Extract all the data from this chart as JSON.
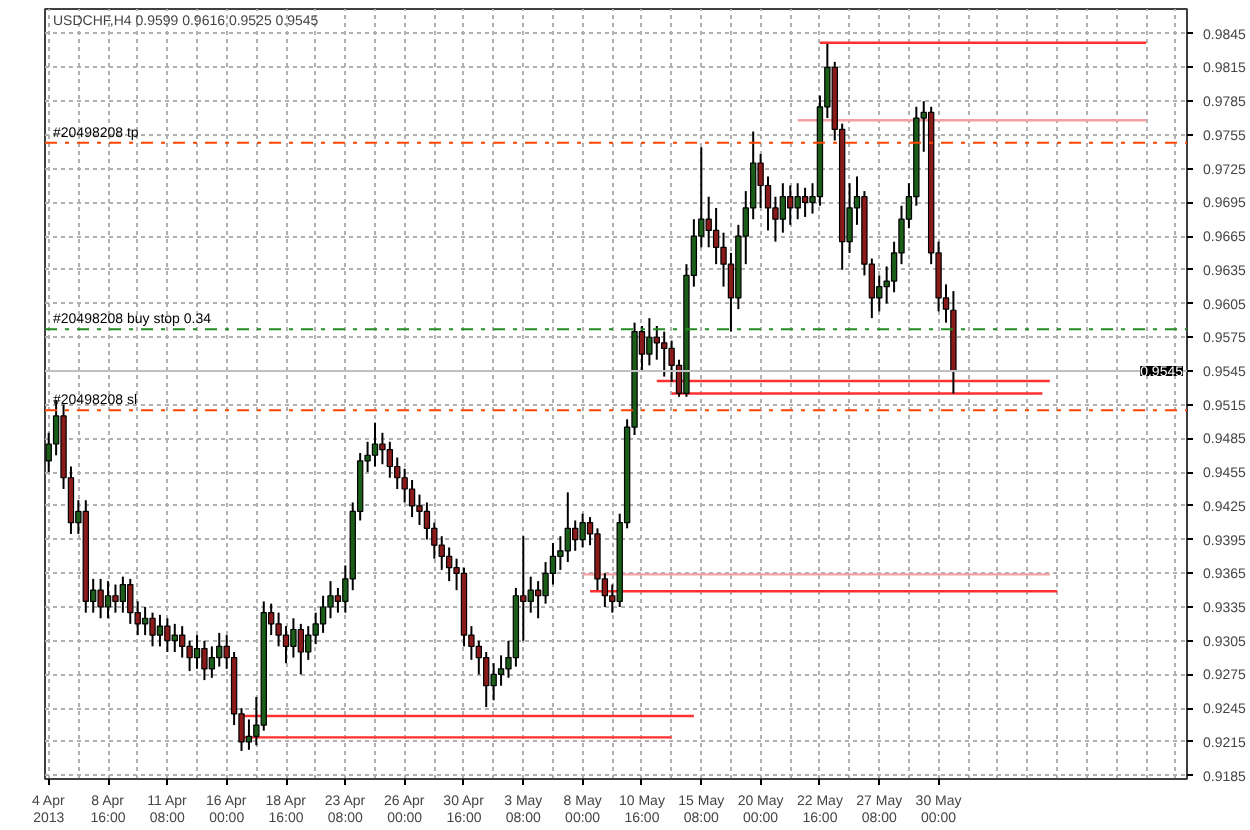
{
  "chart_data": {
    "type": "candlestick",
    "title": "USDCHF,H4 0.9599 0.9616 0.9525 0.9545",
    "categories": [
      "4 Apr 2013",
      null,
      null,
      null,
      null,
      null,
      null,
      null,
      "8 Apr 16:00",
      null,
      null,
      null,
      null,
      null,
      null,
      null,
      "11 Apr 08:00",
      null,
      null,
      null,
      null,
      null,
      null,
      null,
      "16 Apr 00:00",
      null,
      null,
      null,
      null,
      null,
      null,
      null,
      "18 Apr 16:00",
      null,
      null,
      null,
      null,
      null,
      null,
      null,
      "23 Apr 08:00",
      null,
      null,
      null,
      null,
      null,
      null,
      null,
      "26 Apr 00:00",
      null,
      null,
      null,
      null,
      null,
      null,
      null,
      "30 Apr 16:00",
      null,
      null,
      null,
      null,
      null,
      null,
      null,
      "3 May 08:00",
      null,
      null,
      null,
      null,
      null,
      null,
      null,
      "8 May 00:00",
      null,
      null,
      null,
      null,
      null,
      null,
      null,
      "10 May 16:00",
      null,
      null,
      null,
      null,
      null,
      null,
      null,
      "15 May 08:00",
      null,
      null,
      null,
      null,
      null,
      null,
      null,
      "20 May 00:00",
      null,
      null,
      null,
      null,
      null,
      null,
      null,
      "22 May 16:00",
      null,
      null,
      null,
      null,
      null,
      null,
      null,
      "27 May 08:00",
      null,
      null,
      null,
      null,
      null,
      null,
      null,
      "30 May 00:00",
      null,
      null,
      null,
      null,
      null,
      null,
      null,
      null,
      null,
      null,
      null,
      null,
      null,
      null,
      null,
      null,
      null,
      null,
      null,
      null,
      null,
      null,
      null,
      null,
      null,
      null,
      null,
      null,
      null,
      null,
      null,
      null,
      null
    ],
    "ohlc": [
      [
        0.9465,
        0.949,
        0.9455,
        0.948
      ],
      [
        0.948,
        0.9519,
        0.947,
        0.9505
      ],
      [
        0.9505,
        0.9515,
        0.944,
        0.945
      ],
      [
        0.945,
        0.946,
        0.94,
        0.941
      ],
      [
        0.941,
        0.943,
        0.94,
        0.942
      ],
      [
        0.942,
        0.943,
        0.933,
        0.934
      ],
      [
        0.934,
        0.936,
        0.933,
        0.935
      ],
      [
        0.935,
        0.936,
        0.9325,
        0.9335
      ],
      [
        0.9335,
        0.9358,
        0.9325,
        0.9345
      ],
      [
        0.9345,
        0.9355,
        0.933,
        0.934
      ],
      [
        0.934,
        0.9362,
        0.933,
        0.9355
      ],
      [
        0.9355,
        0.936,
        0.932,
        0.933
      ],
      [
        0.933,
        0.934,
        0.931,
        0.932
      ],
      [
        0.932,
        0.9335,
        0.931,
        0.9325
      ],
      [
        0.9325,
        0.933,
        0.93,
        0.931
      ],
      [
        0.931,
        0.9328,
        0.93,
        0.9318
      ],
      [
        0.9318,
        0.9325,
        0.9295,
        0.9305
      ],
      [
        0.9305,
        0.932,
        0.9295,
        0.931
      ],
      [
        0.931,
        0.9318,
        0.929,
        0.93
      ],
      [
        0.93,
        0.9305,
        0.9278,
        0.929
      ],
      [
        0.929,
        0.931,
        0.928,
        0.9298
      ],
      [
        0.9298,
        0.9305,
        0.927,
        0.928
      ],
      [
        0.928,
        0.93,
        0.9272,
        0.929
      ],
      [
        0.929,
        0.9312,
        0.9282,
        0.93
      ],
      [
        0.93,
        0.931,
        0.928,
        0.929
      ],
      [
        0.929,
        0.9295,
        0.923,
        0.924
      ],
      [
        0.924,
        0.9245,
        0.9207,
        0.9215
      ],
      [
        0.9215,
        0.9235,
        0.9208,
        0.922
      ],
      [
        0.922,
        0.9255,
        0.9212,
        0.923
      ],
      [
        0.923,
        0.934,
        0.9225,
        0.933
      ],
      [
        0.933,
        0.9338,
        0.931,
        0.932
      ],
      [
        0.932,
        0.933,
        0.93,
        0.931
      ],
      [
        0.931,
        0.9318,
        0.9285,
        0.93
      ],
      [
        0.93,
        0.9325,
        0.929,
        0.9315
      ],
      [
        0.9315,
        0.932,
        0.9275,
        0.9295
      ],
      [
        0.9295,
        0.9318,
        0.9288,
        0.931
      ],
      [
        0.931,
        0.933,
        0.9302,
        0.932
      ],
      [
        0.932,
        0.9345,
        0.9312,
        0.9335
      ],
      [
        0.9335,
        0.9358,
        0.9325,
        0.9345
      ],
      [
        0.9345,
        0.9352,
        0.933,
        0.934
      ],
      [
        0.934,
        0.9372,
        0.933,
        0.936
      ],
      [
        0.936,
        0.9428,
        0.935,
        0.942
      ],
      [
        0.942,
        0.9472,
        0.9412,
        0.9465
      ],
      [
        0.9465,
        0.9482,
        0.9455,
        0.947
      ],
      [
        0.947,
        0.9499,
        0.946,
        0.948
      ],
      [
        0.948,
        0.949,
        0.9462,
        0.9475
      ],
      [
        0.9475,
        0.9482,
        0.945,
        0.946
      ],
      [
        0.946,
        0.9468,
        0.944,
        0.945
      ],
      [
        0.945,
        0.9458,
        0.9428,
        0.944
      ],
      [
        0.944,
        0.9448,
        0.9415,
        0.9425
      ],
      [
        0.9425,
        0.9435,
        0.9408,
        0.942
      ],
      [
        0.942,
        0.9428,
        0.9395,
        0.9405
      ],
      [
        0.9405,
        0.941,
        0.9378,
        0.939
      ],
      [
        0.939,
        0.9398,
        0.9368,
        0.938
      ],
      [
        0.938,
        0.9388,
        0.9358,
        0.937
      ],
      [
        0.937,
        0.9378,
        0.935,
        0.9365
      ],
      [
        0.9365,
        0.937,
        0.93,
        0.931
      ],
      [
        0.931,
        0.9318,
        0.9288,
        0.93
      ],
      [
        0.93,
        0.9305,
        0.9275,
        0.929
      ],
      [
        0.929,
        0.9295,
        0.9246,
        0.9265
      ],
      [
        0.9265,
        0.9285,
        0.9252,
        0.9275
      ],
      [
        0.9275,
        0.9292,
        0.9265,
        0.928
      ],
      [
        0.928,
        0.9305,
        0.9272,
        0.929
      ],
      [
        0.929,
        0.9352,
        0.9282,
        0.9345
      ],
      [
        0.9345,
        0.9398,
        0.9305,
        0.934
      ],
      [
        0.934,
        0.9362,
        0.933,
        0.935
      ],
      [
        0.935,
        0.9358,
        0.9325,
        0.9345
      ],
      [
        0.9345,
        0.9375,
        0.9338,
        0.9365
      ],
      [
        0.9365,
        0.9392,
        0.9355,
        0.938
      ],
      [
        0.938,
        0.9398,
        0.9368,
        0.9385
      ],
      [
        0.9385,
        0.9437,
        0.9375,
        0.9405
      ],
      [
        0.9405,
        0.9412,
        0.9385,
        0.9395
      ],
      [
        0.9395,
        0.9418,
        0.9388,
        0.941
      ],
      [
        0.941,
        0.9415,
        0.939,
        0.94
      ],
      [
        0.94,
        0.9405,
        0.935,
        0.936
      ],
      [
        0.936,
        0.9365,
        0.9335,
        0.9345
      ],
      [
        0.9345,
        0.9355,
        0.933,
        0.934
      ],
      [
        0.934,
        0.9418,
        0.9335,
        0.941
      ],
      [
        0.941,
        0.9502,
        0.9405,
        0.9495
      ],
      [
        0.9495,
        0.9588,
        0.9488,
        0.958
      ],
      [
        0.958,
        0.9585,
        0.9545,
        0.956
      ],
      [
        0.956,
        0.9592,
        0.955,
        0.9575
      ],
      [
        0.9575,
        0.9585,
        0.9555,
        0.957
      ],
      [
        0.957,
        0.958,
        0.954,
        0.9565
      ],
      [
        0.9565,
        0.9572,
        0.9535,
        0.955
      ],
      [
        0.955,
        0.9555,
        0.9522,
        0.9525
      ],
      [
        0.9525,
        0.964,
        0.9522,
        0.963
      ],
      [
        0.963,
        0.968,
        0.962,
        0.9665
      ],
      [
        0.9665,
        0.9744,
        0.9655,
        0.968
      ],
      [
        0.968,
        0.97,
        0.9655,
        0.967
      ],
      [
        0.967,
        0.969,
        0.964,
        0.9655
      ],
      [
        0.9655,
        0.9668,
        0.962,
        0.964
      ],
      [
        0.964,
        0.965,
        0.958,
        0.961
      ],
      [
        0.961,
        0.9675,
        0.96,
        0.9665
      ],
      [
        0.9665,
        0.9705,
        0.964,
        0.969
      ],
      [
        0.969,
        0.9758,
        0.968,
        0.973
      ],
      [
        0.973,
        0.9738,
        0.969,
        0.971
      ],
      [
        0.971,
        0.9718,
        0.967,
        0.969
      ],
      [
        0.969,
        0.97,
        0.966,
        0.968
      ],
      [
        0.968,
        0.9712,
        0.9668,
        0.97
      ],
      [
        0.97,
        0.971,
        0.9675,
        0.969
      ],
      [
        0.969,
        0.9712,
        0.968,
        0.97
      ],
      [
        0.97,
        0.9708,
        0.9682,
        0.9695
      ],
      [
        0.9695,
        0.9712,
        0.9685,
        0.97
      ],
      [
        0.97,
        0.979,
        0.9692,
        0.978
      ],
      [
        0.978,
        0.9836,
        0.977,
        0.9815
      ],
      [
        0.9815,
        0.982,
        0.975,
        0.976
      ],
      [
        0.976,
        0.9765,
        0.9635,
        0.966
      ],
      [
        0.966,
        0.9712,
        0.965,
        0.969
      ],
      [
        0.969,
        0.9718,
        0.9675,
        0.97
      ],
      [
        0.97,
        0.9705,
        0.963,
        0.964
      ],
      [
        0.964,
        0.9645,
        0.9592,
        0.961
      ],
      [
        0.961,
        0.963,
        0.9598,
        0.962
      ],
      [
        0.962,
        0.9638,
        0.9605,
        0.9625
      ],
      [
        0.9625,
        0.966,
        0.9615,
        0.965
      ],
      [
        0.965,
        0.9692,
        0.964,
        0.968
      ],
      [
        0.968,
        0.9712,
        0.9672,
        0.97
      ],
      [
        0.97,
        0.978,
        0.9692,
        0.977
      ],
      [
        0.977,
        0.9785,
        0.974,
        0.9775
      ],
      [
        0.9775,
        0.978,
        0.964,
        0.965
      ],
      [
        0.965,
        0.966,
        0.9598,
        0.961
      ],
      [
        0.961,
        0.9622,
        0.9588,
        0.96
      ],
      [
        0.9599,
        0.9616,
        0.9525,
        0.9545
      ],
      null,
      null,
      null,
      null,
      null,
      null,
      null,
      null,
      null,
      null,
      null,
      null,
      null,
      null,
      null,
      null,
      null,
      null,
      null,
      null,
      null,
      null,
      null,
      null,
      null,
      null,
      null,
      null,
      null,
      null,
      null
    ],
    "colors": [
      "#1a5e1a",
      "#1a5e1a",
      "#8b1a1a",
      "#8b1a1a",
      "#1a5e1a",
      "#8b1a1a",
      "#1a5e1a",
      "#8b1a1a",
      "#1a5e1a",
      "#8b1a1a",
      "#1a5e1a",
      "#8b1a1a",
      "#8b1a1a",
      "#1a5e1a",
      "#8b1a1a",
      "#1a5e1a",
      "#8b1a1a",
      "#1a5e1a",
      "#8b1a1a",
      "#8b1a1a",
      "#1a5e1a",
      "#8b1a1a",
      "#1a5e1a",
      "#1a5e1a",
      "#8b1a1a",
      "#8b1a1a",
      "#8b1a1a",
      "#1a5e1a",
      "#1a5e1a",
      "#1a5e1a",
      "#8b1a1a",
      "#8b1a1a",
      "#8b1a1a",
      "#1a5e1a",
      "#8b1a1a",
      "#1a5e1a",
      "#1a5e1a",
      "#1a5e1a",
      "#1a5e1a",
      "#8b1a1a",
      "#1a5e1a",
      "#1a5e1a",
      "#1a5e1a",
      "#1a5e1a",
      "#1a5e1a",
      "#8b1a1a",
      "#8b1a1a",
      "#8b1a1a",
      "#8b1a1a",
      "#8b1a1a",
      "#8b1a1a",
      "#8b1a1a",
      "#8b1a1a",
      "#8b1a1a",
      "#8b1a1a",
      "#8b1a1a",
      "#8b1a1a",
      "#8b1a1a",
      "#8b1a1a",
      "#8b1a1a",
      "#1a5e1a",
      "#1a5e1a",
      "#1a5e1a",
      "#1a5e1a",
      "#8b1a1a",
      "#1a5e1a",
      "#8b1a1a",
      "#1a5e1a",
      "#1a5e1a",
      "#1a5e1a",
      "#1a5e1a",
      "#8b1a1a",
      "#1a5e1a",
      "#8b1a1a",
      "#8b1a1a",
      "#8b1a1a",
      "#8b1a1a",
      "#1a5e1a",
      "#1a5e1a",
      "#1a5e1a",
      "#8b1a1a",
      "#1a5e1a",
      "#8b1a1a",
      "#8b1a1a",
      "#8b1a1a",
      "#8b1a1a",
      "#1a5e1a",
      "#1a5e1a",
      "#1a5e1a",
      "#8b1a1a",
      "#8b1a1a",
      "#8b1a1a",
      "#8b1a1a",
      "#1a5e1a",
      "#1a5e1a",
      "#1a5e1a",
      "#8b1a1a",
      "#8b1a1a",
      "#8b1a1a",
      "#1a5e1a",
      "#8b1a1a",
      "#1a5e1a",
      "#8b1a1a",
      "#1a5e1a",
      "#1a5e1a",
      "#1a5e1a",
      "#8b1a1a",
      "#8b1a1a",
      "#1a5e1a",
      "#1a5e1a",
      "#8b1a1a",
      "#8b1a1a",
      "#1a5e1a",
      "#1a5e1a",
      "#1a5e1a",
      "#1a5e1a",
      "#1a5e1a",
      "#1a5e1a",
      "#1a5e1a",
      "#8b1a1a",
      "#8b1a1a",
      "#8b1a1a",
      "#8b1a1a",
      null,
      null,
      null,
      null,
      null,
      null,
      null,
      null,
      null,
      null,
      null,
      null,
      null,
      null,
      null,
      null,
      null,
      null,
      null,
      null,
      null,
      null,
      null,
      null,
      null,
      null,
      null,
      null,
      null,
      null,
      null
    ],
    "series": [
      {
        "type": "line",
        "color": "#ff3030",
        "values": [
          null,
          null,
          null,
          null,
          null,
          null,
          null,
          null,
          null,
          null,
          null,
          null,
          null,
          null,
          null,
          null,
          null,
          null,
          null,
          null,
          null,
          null,
          null,
          null,
          null,
          null,
          null,
          null,
          null,
          null,
          null,
          null,
          null,
          null,
          null,
          null,
          null,
          null,
          null,
          null,
          null,
          null,
          null,
          null,
          null,
          null,
          null,
          null,
          null,
          null,
          null,
          null,
          null,
          null,
          null,
          null,
          null,
          null,
          null,
          null,
          null,
          null,
          null,
          null,
          null,
          null,
          null,
          null,
          null,
          null,
          null,
          null,
          null,
          null,
          null,
          null,
          null,
          null,
          null,
          null,
          null,
          null,
          null,
          null,
          null,
          null,
          null,
          null,
          null,
          null,
          null,
          null,
          null,
          null,
          null,
          null,
          null,
          null,
          null,
          null,
          null,
          null,
          null,
          null,
          0.9837,
          0.9837,
          0.9837,
          0.9837,
          0.9837,
          0.9837,
          0.9837,
          0.9837,
          0.9837,
          0.9837,
          0.9837,
          0.9837,
          0.9837,
          0.9837,
          0.9837,
          0.9837,
          0.9837,
          0.9837,
          0.9837,
          0.9837,
          0.9837,
          0.9837,
          0.9837,
          0.9837,
          0.9837,
          0.9837,
          0.9837,
          0.9837,
          0.9837,
          0.9837,
          0.9837,
          0.9837,
          0.9837,
          0.9837,
          0.9837,
          0.9837,
          0.9837,
          0.9837,
          0.9837,
          0.9837,
          0.9837,
          0.9837,
          0.9837,
          0.9837,
          0.9837,
          null,
          null,
          null,
          null,
          null
        ]
      },
      {
        "type": "line",
        "color": "#f4a0a0",
        "values": [
          null,
          null,
          null,
          null,
          null,
          null,
          null,
          null,
          null,
          null,
          null,
          null,
          null,
          null,
          null,
          null,
          null,
          null,
          null,
          null,
          null,
          null,
          null,
          null,
          null,
          null,
          null,
          null,
          null,
          null,
          null,
          null,
          null,
          null,
          null,
          null,
          null,
          null,
          null,
          null,
          null,
          null,
          null,
          null,
          null,
          null,
          null,
          null,
          null,
          null,
          null,
          null,
          null,
          null,
          null,
          null,
          null,
          null,
          null,
          null,
          null,
          null,
          null,
          null,
          null,
          null,
          null,
          null,
          null,
          null,
          null,
          null,
          null,
          null,
          null,
          null,
          null,
          null,
          null,
          null,
          null,
          null,
          null,
          null,
          null,
          null,
          null,
          null,
          null,
          null,
          null,
          null,
          null,
          null,
          null,
          null,
          null,
          null,
          null,
          null,
          null,
          0.9768,
          0.9768,
          0.9768,
          0.9768,
          0.9768,
          0.9768,
          0.9768,
          0.9768,
          0.9768,
          0.9768,
          0.9768,
          0.9768,
          0.9768,
          0.9768,
          0.9768,
          0.9768,
          0.9768,
          0.9768,
          0.9768,
          0.9768,
          0.9768,
          0.9768,
          0.9768,
          0.9768,
          0.9768,
          0.9768,
          0.9768,
          0.9768,
          0.9768,
          0.9768,
          0.9768,
          0.9768,
          0.9768,
          0.9768,
          0.9768,
          0.9768,
          0.9768,
          0.9768,
          0.9768,
          0.9768,
          0.9768,
          0.9768,
          0.9768,
          0.9768,
          0.9768,
          0.9768,
          0.9768,
          0.9768,
          null,
          null,
          null,
          null,
          null
        ]
      },
      {
        "type": "line",
        "color": "#ff3030",
        "values": [
          null,
          null,
          null,
          null,
          null,
          null,
          null,
          null,
          null,
          null,
          null,
          null,
          null,
          null,
          null,
          null,
          null,
          null,
          null,
          null,
          null,
          null,
          null,
          null,
          null,
          null,
          null,
          null,
          null,
          null,
          null,
          null,
          null,
          null,
          null,
          null,
          null,
          null,
          null,
          null,
          null,
          null,
          null,
          null,
          null,
          null,
          null,
          null,
          null,
          null,
          null,
          null,
          null,
          null,
          null,
          null,
          null,
          null,
          null,
          null,
          null,
          null,
          null,
          null,
          null,
          null,
          null,
          null,
          null,
          null,
          null,
          null,
          null,
          null,
          null,
          null,
          null,
          null,
          null,
          null,
          null,
          null,
          0.9536,
          0.9536,
          0.9536,
          0.9536,
          0.9536,
          0.9536,
          0.9536,
          0.9536,
          0.9536,
          0.9536,
          0.9536,
          0.9536,
          0.9536,
          0.9536,
          0.9536,
          0.9536,
          0.9536,
          0.9536,
          0.9536,
          0.9536,
          0.9536,
          0.9536,
          0.9536,
          0.9536,
          0.9536,
          0.9536,
          0.9536,
          0.9536,
          0.9536,
          0.9536,
          0.9536,
          0.9536,
          0.9536,
          0.9536,
          0.9536,
          0.9536,
          0.9536,
          0.9536,
          0.9536,
          0.9536,
          0.9536,
          0.9536,
          0.9536,
          0.9536,
          0.9536,
          0.9536,
          0.9536,
          0.9536,
          0.9536,
          0.9536,
          0.9536,
          0.9536,
          0.9536,
          0.9536,
          null,
          null,
          null,
          null,
          null,
          null,
          null,
          null,
          null,
          null,
          null,
          null,
          null,
          null,
          null,
          null,
          null,
          null
        ]
      },
      {
        "type": "line",
        "color": "#ff3030",
        "values": [
          null,
          null,
          null,
          null,
          null,
          null,
          null,
          null,
          null,
          null,
          null,
          null,
          null,
          null,
          null,
          null,
          null,
          null,
          null,
          null,
          null,
          null,
          null,
          null,
          null,
          null,
          null,
          null,
          null,
          null,
          null,
          null,
          null,
          null,
          null,
          null,
          null,
          null,
          null,
          null,
          null,
          null,
          null,
          null,
          null,
          null,
          null,
          null,
          null,
          null,
          null,
          null,
          null,
          null,
          null,
          null,
          null,
          null,
          null,
          null,
          null,
          null,
          null,
          null,
          null,
          null,
          null,
          null,
          null,
          null,
          null,
          null,
          null,
          null,
          null,
          null,
          null,
          null,
          null,
          null,
          null,
          null,
          null,
          null,
          0.9525,
          0.9525,
          0.9525,
          0.9525,
          0.9525,
          0.9525,
          0.9525,
          0.9525,
          0.9525,
          0.9525,
          0.9525,
          0.9525,
          0.9525,
          0.9525,
          0.9525,
          0.9525,
          0.9525,
          0.9525,
          0.9525,
          0.9525,
          0.9525,
          0.9525,
          0.9525,
          0.9525,
          0.9525,
          0.9525,
          0.9525,
          0.9525,
          0.9525,
          0.9525,
          0.9525,
          0.9525,
          0.9525,
          0.9525,
          0.9525,
          0.9525,
          0.9525,
          0.9525,
          0.9525,
          0.9525,
          0.9525,
          0.9525,
          0.9525,
          0.9525,
          0.9525,
          0.9525,
          0.9525,
          0.9525,
          0.9525,
          0.9525,
          0.9525,
          null,
          null,
          null,
          null,
          null,
          null,
          null,
          null,
          null,
          null,
          null,
          null,
          null,
          null,
          null,
          null,
          null,
          null,
          null
        ]
      },
      {
        "type": "line",
        "color": "#f4a0a0",
        "values": [
          null,
          null,
          null,
          null,
          null,
          null,
          null,
          null,
          null,
          null,
          null,
          null,
          null,
          null,
          null,
          null,
          null,
          null,
          null,
          null,
          null,
          null,
          null,
          null,
          null,
          null,
          null,
          null,
          null,
          null,
          null,
          null,
          null,
          null,
          null,
          null,
          null,
          null,
          null,
          null,
          null,
          null,
          null,
          null,
          null,
          null,
          null,
          null,
          null,
          null,
          null,
          null,
          null,
          null,
          null,
          null,
          null,
          null,
          null,
          null,
          null,
          null,
          null,
          null,
          null,
          null,
          null,
          null,
          null,
          null,
          null,
          null,
          0.9364,
          0.9364,
          0.9364,
          0.9364,
          0.9364,
          0.9364,
          0.9364,
          0.9364,
          0.9364,
          0.9364,
          0.9364,
          0.9364,
          0.9364,
          0.9364,
          0.9364,
          0.9364,
          0.9364,
          0.9364,
          0.9364,
          0.9364,
          0.9364,
          0.9364,
          0.9364,
          0.9364,
          0.9364,
          0.9364,
          0.9364,
          0.9364,
          0.9364,
          0.9364,
          0.9364,
          0.9364,
          0.9364,
          0.9364,
          0.9364,
          0.9364,
          0.9364,
          0.9364,
          0.9364,
          0.9364,
          0.9364,
          0.9364,
          0.9364,
          0.9364,
          0.9364,
          0.9364,
          0.9364,
          0.9364,
          0.9364,
          0.9364,
          0.9364,
          0.9364,
          0.9364,
          0.9364,
          0.9364,
          0.9364,
          0.9364,
          0.9364,
          0.9364,
          0.9364,
          0.9364,
          0.9364,
          0.9364,
          0.9364,
          null,
          null,
          null,
          null,
          null,
          null,
          null,
          null,
          null,
          null,
          null,
          null,
          null,
          null,
          null,
          null,
          null,
          null
        ]
      },
      {
        "type": "line",
        "color": "#ff3030",
        "values": [
          null,
          null,
          null,
          null,
          null,
          null,
          null,
          null,
          null,
          null,
          null,
          null,
          null,
          null,
          null,
          null,
          null,
          null,
          null,
          null,
          null,
          null,
          null,
          null,
          null,
          null,
          null,
          null,
          null,
          null,
          null,
          null,
          null,
          null,
          null,
          null,
          null,
          null,
          null,
          null,
          null,
          null,
          null,
          null,
          null,
          null,
          null,
          null,
          null,
          null,
          null,
          null,
          null,
          null,
          null,
          null,
          null,
          null,
          null,
          null,
          null,
          null,
          null,
          null,
          null,
          null,
          null,
          null,
          null,
          null,
          null,
          null,
          null,
          0.9349,
          0.9349,
          0.9349,
          0.9349,
          0.9349,
          0.9349,
          0.9349,
          0.9349,
          0.9349,
          0.9349,
          0.9349,
          0.9349,
          0.9349,
          0.9349,
          0.9349,
          0.9349,
          0.9349,
          0.9349,
          0.9349,
          0.9349,
          0.9349,
          0.9349,
          0.9349,
          0.9349,
          0.9349,
          0.9349,
          0.9349,
          0.9349,
          0.9349,
          0.9349,
          0.9349,
          0.9349,
          0.9349,
          0.9349,
          0.9349,
          0.9349,
          0.9349,
          0.9349,
          0.9349,
          0.9349,
          0.9349,
          0.9349,
          0.9349,
          0.9349,
          0.9349,
          0.9349,
          0.9349,
          0.9349,
          0.9349,
          0.9349,
          0.9349,
          0.9349,
          0.9349,
          0.9349,
          0.9349,
          0.9349,
          0.9349,
          0.9349,
          0.9349,
          0.9349,
          0.9349,
          0.9349,
          0.9349,
          0.9349,
          null,
          null,
          null,
          null,
          null,
          null,
          null,
          null,
          null,
          null,
          null,
          null,
          null,
          null,
          null,
          null,
          null
        ]
      },
      {
        "type": "line",
        "color": "#ff3030",
        "values": [
          null,
          null,
          null,
          null,
          null,
          null,
          null,
          null,
          null,
          null,
          null,
          null,
          null,
          null,
          null,
          null,
          null,
          null,
          null,
          null,
          null,
          null,
          null,
          null,
          null,
          null,
          0.9238,
          0.9238,
          0.9238,
          0.9238,
          0.9238,
          0.9238,
          0.9238,
          0.9238,
          0.9238,
          0.9238,
          0.9238,
          0.9238,
          0.9238,
          0.9238,
          0.9238,
          0.9238,
          0.9238,
          0.9238,
          0.9238,
          0.9238,
          0.9238,
          0.9238,
          0.9238,
          0.9238,
          0.9238,
          0.9238,
          0.9238,
          0.9238,
          0.9238,
          0.9238,
          0.9238,
          0.9238,
          0.9238,
          0.9238,
          0.9238,
          0.9238,
          0.9238,
          0.9238,
          0.9238,
          0.9238,
          0.9238,
          0.9238,
          0.9238,
          0.9238,
          0.9238,
          0.9238,
          0.9238,
          0.9238,
          0.9238,
          0.9238,
          0.9238,
          0.9238,
          0.9238,
          0.9238,
          0.9238,
          0.9238,
          0.9238,
          0.9238,
          0.9238,
          0.9238,
          0.9238,
          0.9238,
          null,
          null,
          null,
          null,
          null,
          null,
          null,
          null,
          null,
          null,
          null,
          null,
          null,
          null,
          null,
          null,
          null,
          null,
          null,
          null,
          null,
          null,
          null,
          null,
          null,
          null,
          null,
          null,
          null,
          null,
          null,
          null,
          null,
          null,
          null,
          null,
          null,
          null,
          null,
          null,
          null,
          null,
          null,
          null,
          null,
          null,
          null,
          null,
          null,
          null,
          null,
          null,
          null,
          null,
          null,
          null,
          null,
          null,
          null,
          null,
          null,
          null,
          null,
          null,
          null,
          null
        ]
      },
      {
        "type": "line",
        "color": "#ff3030",
        "values": [
          null,
          null,
          null,
          null,
          null,
          null,
          null,
          null,
          null,
          null,
          null,
          null,
          null,
          null,
          null,
          null,
          null,
          null,
          null,
          null,
          null,
          null,
          null,
          null,
          null,
          null,
          0.9219,
          0.9219,
          0.9219,
          0.9219,
          0.9219,
          0.9219,
          0.9219,
          0.9219,
          0.9219,
          0.9219,
          0.9219,
          0.9219,
          0.9219,
          0.9219,
          0.9219,
          0.9219,
          0.9219,
          0.9219,
          0.9219,
          0.9219,
          0.9219,
          0.9219,
          0.9219,
          0.9219,
          0.9219,
          0.9219,
          0.9219,
          0.9219,
          0.9219,
          0.9219,
          0.9219,
          0.9219,
          0.9219,
          0.9219,
          0.9219,
          0.9219,
          0.9219,
          0.9219,
          0.9219,
          0.9219,
          0.9219,
          0.9219,
          0.9219,
          0.9219,
          0.9219,
          0.9219,
          0.9219,
          0.9219,
          0.9219,
          0.9219,
          0.9219,
          0.9219,
          0.9219,
          0.9219,
          0.9219,
          0.9219,
          0.9219,
          0.9219,
          0.9219,
          null,
          null,
          null,
          null,
          null,
          null,
          null,
          null,
          null,
          null,
          null,
          null,
          null,
          null,
          null,
          null,
          null,
          null,
          null,
          null,
          null,
          null,
          null,
          null,
          null,
          null,
          null,
          null,
          null,
          null,
          null,
          null,
          null,
          null,
          null,
          null,
          null,
          null,
          null,
          null,
          null,
          null,
          null,
          null,
          null,
          null,
          null,
          null,
          null,
          null,
          null,
          null,
          null,
          null,
          null,
          null,
          null,
          null,
          null,
          null,
          null,
          null,
          null,
          null,
          null,
          null,
          null,
          null,
          null
        ]
      }
    ],
    "ref_lines": [
      {
        "axis": "y",
        "value": 0.9748,
        "label": "#20498208 tp",
        "color": "#ff4500",
        "line_style": "dashdot"
      },
      {
        "axis": "y",
        "value": 0.9582,
        "label": "#20498208 buy stop 0.34",
        "color": "#228b22",
        "line_style": "dashdot"
      },
      {
        "axis": "y",
        "value": 0.951,
        "label": "#20498208 sl",
        "color": "#ff4500",
        "line_style": "dashdot"
      },
      {
        "axis": "y",
        "value": 0.9545,
        "label": "0.9545",
        "color": "#c0c0c0",
        "line_style": "solid"
      }
    ],
    "ylim": [
      0.9182,
      0.9867
    ],
    "yticks": [
      0.9185,
      0.9215,
      0.9245,
      0.9275,
      0.9305,
      0.9335,
      0.9365,
      0.9395,
      0.9425,
      0.9455,
      0.9485,
      0.9515,
      0.9545,
      0.9575,
      0.9605,
      0.9635,
      0.9665,
      0.9695,
      0.9725,
      0.9755,
      0.9785,
      0.9815,
      0.9845
    ],
    "grid": true
  }
}
